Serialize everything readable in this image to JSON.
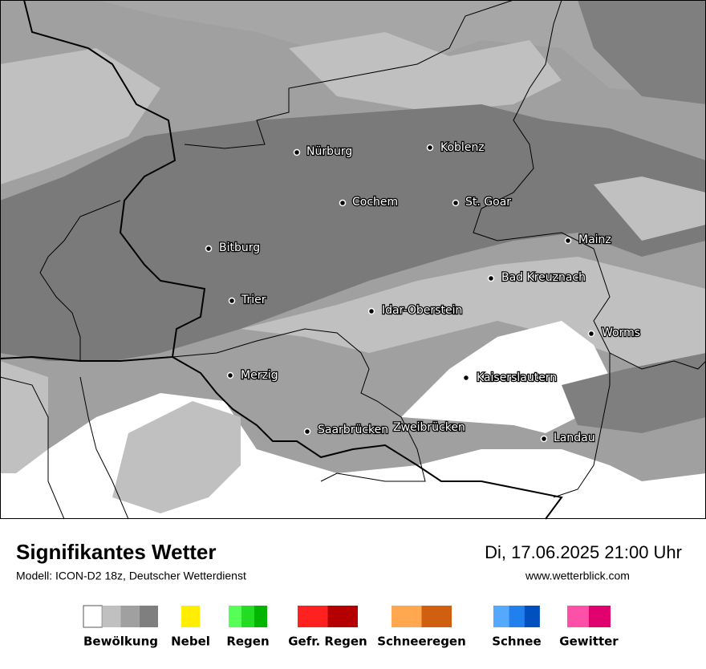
{
  "map": {
    "cities": [
      "Nürburg",
      "Koblenz",
      "Cochem",
      "St. Goar",
      "Bitburg",
      "Mainz",
      "Bad Kreuznach",
      "Trier",
      "Idar-Oberstein",
      "Worms",
      "Merzig",
      "Kaiserslautern",
      "Saarbrücken",
      "Zweibrücken",
      "Landau"
    ]
  },
  "footer": {
    "title": "Signifikantes Wetter",
    "model": "Modell: ICON-D2 18z, Deutscher Wetterdienst",
    "datetime": "Di, 17.06.2025 21:00 Uhr",
    "website": "www.wetterblick.com"
  },
  "legend": {
    "items": [
      {
        "label": "Bewölkung",
        "colors": [
          "#ffffff",
          "#c0c0c0",
          "#a0a0a0",
          "#7f7f7f"
        ]
      },
      {
        "label": "Nebel",
        "colors": [
          "#ffee00"
        ]
      },
      {
        "label": "Regen",
        "colors": [
          "#55ff55",
          "#22dd22",
          "#00b400"
        ]
      },
      {
        "label": "Gefr. Regen",
        "colors": [
          "#ff2020",
          "#b40000"
        ]
      },
      {
        "label": "Schneeregen",
        "colors": [
          "#ffa850",
          "#d06010"
        ]
      },
      {
        "label": "Schnee",
        "colors": [
          "#55aaff",
          "#2080ee",
          "#0050c0"
        ]
      },
      {
        "label": "Gewitter",
        "colors": [
          "#ff50a8",
          "#e0006e"
        ]
      }
    ]
  }
}
